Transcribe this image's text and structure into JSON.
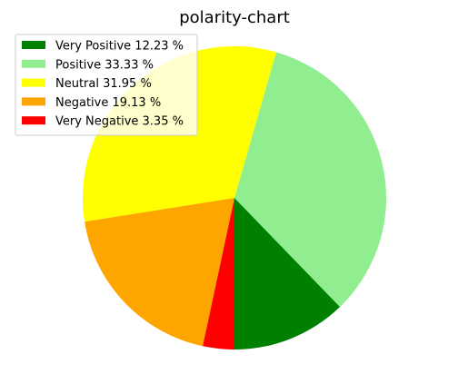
{
  "chart_data": {
    "type": "pie",
    "title": "polarity-chart",
    "categories": [
      "Very Positive 12.23 %",
      "Positive 33.33 %",
      "Neutral 31.95 %",
      "Negative 19.13 %",
      "Very Negative 3.35 %"
    ],
    "values": [
      12.23,
      33.33,
      31.95,
      19.13,
      3.35
    ],
    "colors": [
      "#008000",
      "#90ee90",
      "#ffff00",
      "#ffa500",
      "#ff0000"
    ],
    "start_angle_deg": -90,
    "direction": "counterclockwise",
    "legend_position": "upper-left"
  }
}
